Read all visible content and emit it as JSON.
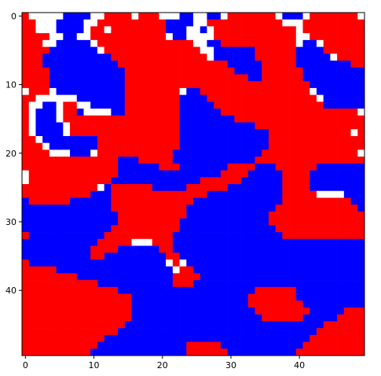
{
  "colors": {
    "red": "#ff0000",
    "blue": "#0000ff",
    "white": "#ffffff",
    "axis": "#000000"
  },
  "chart_data": {
    "type": "heatmap",
    "title": "",
    "xlabel": "",
    "ylabel": "",
    "grid": false,
    "xlim": [
      -0.5,
      49.5
    ],
    "ylim": [
      49.5,
      -0.5
    ],
    "x_ticks": [
      0,
      10,
      20,
      30,
      40
    ],
    "y_ticks": [
      0,
      10,
      20,
      30,
      40
    ],
    "x_tick_labels": [
      "0",
      "10",
      "20",
      "30",
      "40"
    ],
    "y_tick_labels": [
      "0",
      "10",
      "20",
      "30",
      "40"
    ],
    "legend": "",
    "cell_legend": {
      "R": "red",
      "B": "blue",
      "W": "white"
    },
    "grid_rows": [
      "RWWWWWBBBBWWRRRRWRRRWWWBBWWBBWRRRRRRRWBBBWRRRRRRRW",
      "RRWWWBBBBWWRRRRRRRRRRBBBBWWRRRRRRRRRRRWWWRRRRRRRRR",
      "RRWWWBBBBWRRWRRRRRRRRBBBWWBWRRRRRRRRRRRRWRRRRRRRRR",
      "RRRRWWBBWWRRRRRRRRRRRWBBWWWWRRRRRRRRRRRRWWRRRRRRRR",
      "RRRWWBBBBBWRRRRRRRRRRRRRRWWBBRRRRRRRRRRRWBBWRRRRRR",
      "RRRRBBBBBBBWRRRRRRRRRRRRRRWWBBBBBBRRRRRRBBBBRRRRRR",
      "RRRBBBBBBBBBBRRRRRRRRRRRRRRWBBBBBBRRRRRRBBBBBWRRRR",
      "RRRBBBBBBBBBBBRRRRRRRRRRRRRRRRBBBBBRRRRRBBBBBBBBRR",
      "RRRRBBBBBBBBBBBRRRRRRRRRRRRRRRRBBBBRRRRRRBBBBBBBBB",
      "RRRRBBBBBBBBBBBRRRRRRRRRRRRRRRRRRBBRRRRRRBBBBBBBBB",
      "RRRRBBBBBBBBBBBRRRRRRRRRRRRRRRRRRRRRRRRRRRBBBBBBBB",
      "WRRRWBBBBBBBBBBRRRRRRRRWBBRRRRRRRRRRRRRRRRWBBBBBBB",
      "RRWWWWWWBBBBBBBRRRRRRRRBBBBRRRRRRRRRRRRRRRRWBBBBBB",
      "RWWBBWRRWWBBBBBRRRRRRRRBBBBBRRRRRRRRRRRRRRRRBBBBBB",
      "RWBBBWRRBWWWWBBRRRRRRRRBBBBBBRRRRRRRRRRRRRRRRRRRRW",
      "RWBBBWRRRRRRRRRRRRRRRRRBBBBBBBBRRRRRRRRRRRRRRRRRRR",
      "RWBBBBWRRRRRRRRRRRRRRRRBBBBBBBBBBBRRRRRRRRRRRRRRRR",
      "RWBBBBWRRRRRRRRRRRRRRRRBBBBBBBBBBBBBRRRRRRRRRRRRWR",
      "RRWBBBBBBBBRRRRRRRRRRRRBBBBBBBBBBBBBRRRRRRRRRRRRRR",
      "RRRWBBBBBBBRRRRRRRRRRRRBBBBBBBBBBBBBRRRRRRRRRRRRRR",
      "RRRRWWWBBBWRRRRRRRRRRRBBBBBBBBBBBBBRRRRRRRRRRRRRRW",
      "RRRRRRRRRRRRRRBBBRRRRRBBBBBBBBBBBBRRRRRRRRRRRRRRRR",
      "RRRRRRRRRRRRRRBBBBBBRRRBBBBBBBRRRRBBBRRRRRRBBBBBBB",
      "WRRRRRRRRRRRRRBBBBBBBBBBBBBBBRRRRBBBBBRRRRBBBBBBBB",
      "WRRRRRRRRRRRRBBBBBBBBBBBBBRRRRRRBBBBBBRRRRBBBBBBBB",
      "RRRRRRRRRRRWBRRRRRRBBBBBRRRRRRBBBBBBBBRRRRBBBBBBBB",
      "RRRRRRRRRRBBBRRRRRRRRRRRRRRBBBBBBBBBBBRRRRRWWWWBBB",
      "BRRRRRRBBBBBBRRRRRRRRRRRRBBBBBBBBBBBBBRRRRRRRRRRBB",
      "BBBBBBBBBBBBBRRRRRRRRRRRBBBBBBBBBBBBBRRRRRRRRRRRRB",
      "BBBBBBBBBBBBBBRRRRRRRRRRBBBBBBBBBBBBRRRRRRRRRRRRRR",
      "BBBBBBBBBBBBBBRRRRRRRRRBBBBBBBBBBBBBRRRRRRRRRRRRRR",
      "BBBBBBBBBBBBBRRRRRRRRRRBBBBBBBBBBBBBBRRRRRRRRRRRRR",
      "RBBBBBBBBBBBRRRRRRRRRRBBBBBBBBBBBBBBBBRRRRRRRRRRRR",
      "BBBBBBBBBBBRRRRRWWWRRRBBBBBBBBBBBBBBBBBBBBBBBBBBBB",
      "BBBBBBBBBBRRRRBBBBBBRRBBBBBBBBBBBBBBBBBBBBBBBBBBBB",
      "BBBBBBBBBBRRBBBBBBBBBRRBBBBBBBBBBBBBBBBBBBBBBBBBBB",
      "RBBBBBBBBBBBBBBBBBBBBWRWBBBBBBBBBBBBBBBBBBBBBBBBBB",
      "RRRRRBBBBBBBBBBBBBBBBBWRRBBBBBBBBBBBBBBBBBBBBBBBBB",
      "RRRRRRRRBBBBBBBBBBBBBBRRRRBBBBBBBBBBBBBBBBBBBBBBBB",
      "RRRRRRRRRRRBBBBBBBBBBBRRRBBBBBBBBBBBBBBBBBBBBBBBBB",
      "RRRRRRRRRRRRRRBBBBBBBBBBBBBBBBBBBBRRRRRRBBBBBBBBBB",
      "RRRRRRRRRRRRRRRRBBBBBBBBBBBBBBBBBRRRRRRRBBBBBBBBBB",
      "RRRRRRRRRRRRRRRRBBBBBBBBBBBBBBBBBRRRRRRRRBBBBBBBBB",
      "RRRRRRRRRRRRRRRRBBBBBBBBBBBBBBBBBBRRRRRRRRBBBBBRRR",
      "RRRRRRRRRRRRRRRRBBBBBBBBBBBBBBBBBBBRRRRRRBBBBBRRRR",
      "RRRRRRRRRRRRRRRBBBBBBBBBBBBBBBBBBBBBBBBBBBBBRRRRRR",
      "RRRRRRRRRRRRRRBBBBBBBBBBBBBBBBBBBBBBBBBBBBBRRRRRRR",
      "RRRRRRRRRRRRBBBBBBBBBBBBBBBBBBBBBBBBBBBBBBRRRRRRRR",
      "RRRRRRRRRRRBBBBBBBBBBBBBRRRRRBBBBBBBBBBBBRRRRRRRRR",
      "RRRRRRRRRRBBBBBBBBBBBBBBRRRRRRBBBBBBBBBBRRRRRRRRRR"
    ]
  }
}
